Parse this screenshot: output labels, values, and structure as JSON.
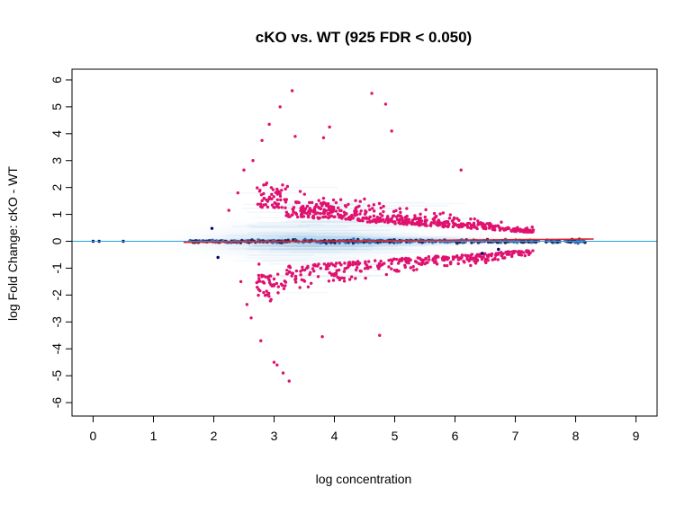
{
  "chart_data": {
    "type": "scatter",
    "title": "cKO vs. WT (925 FDR < 0.050)",
    "xlabel": "log concentration",
    "ylabel": "log Fold Change: cKO - WT",
    "xlim": [
      -0.35,
      9.35
    ],
    "ylim": [
      -6.5,
      6.4
    ],
    "x_ticks": [
      "0",
      "1",
      "2",
      "3",
      "4",
      "5",
      "6",
      "7",
      "8",
      "9"
    ],
    "y_ticks": [
      "6",
      "5",
      "4",
      "3",
      "2",
      "1",
      "0",
      "-1",
      "-2",
      "-3",
      "-4",
      "-5",
      "-6"
    ],
    "reference_line_y": 0,
    "grid": false,
    "legend": "none",
    "colors": {
      "significant": "#e0116f",
      "nonsignificant": "#000066",
      "density": "#6fa8d8",
      "trend": "#e0202a",
      "zero_line": "#2a9fe0"
    },
    "nonsignificant_points": [
      {
        "x": 0.0,
        "y": 0.0
      },
      {
        "x": 0.1,
        "y": 0.0
      },
      {
        "x": 0.5,
        "y": 0.0
      },
      {
        "x": 1.97,
        "y": 0.48
      },
      {
        "x": 2.07,
        "y": -0.6
      },
      {
        "x": 6.72,
        "y": -0.3
      },
      {
        "x": 6.45,
        "y": -0.45
      }
    ],
    "significant_points_anchors": [
      {
        "x": 3.3,
        "y": 5.6
      },
      {
        "x": 4.62,
        "y": 5.5
      },
      {
        "x": 4.85,
        "y": 5.1
      },
      {
        "x": 3.1,
        "y": 5.0
      },
      {
        "x": 4.95,
        "y": 4.1
      },
      {
        "x": 2.92,
        "y": 4.35
      },
      {
        "x": 3.92,
        "y": 4.25
      },
      {
        "x": 3.82,
        "y": 3.85
      },
      {
        "x": 3.35,
        "y": 3.9
      },
      {
        "x": 2.8,
        "y": 3.75
      },
      {
        "x": 2.65,
        "y": 3.0
      },
      {
        "x": 2.5,
        "y": 2.65
      },
      {
        "x": 6.1,
        "y": 2.65
      },
      {
        "x": 2.4,
        "y": 1.8
      },
      {
        "x": 2.25,
        "y": 1.15
      },
      {
        "x": 2.75,
        "y": -0.85
      },
      {
        "x": 2.45,
        "y": -1.5
      },
      {
        "x": 2.55,
        "y": -2.35
      },
      {
        "x": 2.62,
        "y": -2.85
      },
      {
        "x": 2.78,
        "y": -3.7
      },
      {
        "x": 3.8,
        "y": -3.55
      },
      {
        "x": 4.75,
        "y": -3.5
      },
      {
        "x": 3.0,
        "y": -4.5
      },
      {
        "x": 3.05,
        "y": -4.6
      },
      {
        "x": 3.15,
        "y": -4.9
      },
      {
        "x": 3.25,
        "y": -5.2
      }
    ]
  }
}
